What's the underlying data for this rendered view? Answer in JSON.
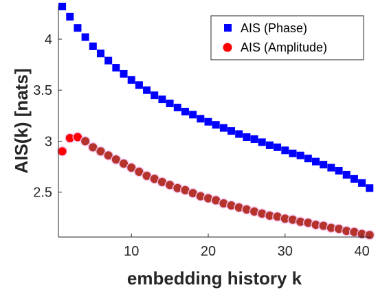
{
  "chart_data": {
    "type": "scatter",
    "title": "",
    "xlabel": "embedding history k",
    "ylabel": "AIS(k) [nats]",
    "xlim": [
      0.5,
      41.2
    ],
    "ylim": [
      2.06,
      4.33
    ],
    "xticks": [
      10,
      20,
      30,
      40
    ],
    "yticks": [
      2.5,
      3,
      3.5,
      4
    ],
    "xtick_labels": [
      "10",
      "20",
      "30",
      "40"
    ],
    "ytick_labels": [
      "2.5",
      "3",
      "3.5",
      "4"
    ],
    "grid": false,
    "legend_position": "top-right",
    "x": [
      1,
      2,
      3,
      4,
      5,
      6,
      7,
      8,
      9,
      10,
      11,
      12,
      13,
      14,
      15,
      16,
      17,
      18,
      19,
      20,
      21,
      22,
      23,
      24,
      25,
      26,
      27,
      28,
      29,
      30,
      31,
      32,
      33,
      34,
      35,
      36,
      37,
      38,
      39,
      40,
      41
    ],
    "series": [
      {
        "name": "AIS (Phase)",
        "marker": "square",
        "color": "#0000ff",
        "values": [
          4.32,
          4.22,
          4.11,
          4.02,
          3.93,
          3.86,
          3.79,
          3.72,
          3.66,
          3.6,
          3.55,
          3.5,
          3.45,
          3.41,
          3.37,
          3.33,
          3.29,
          3.26,
          3.22,
          3.19,
          3.16,
          3.13,
          3.1,
          3.07,
          3.04,
          3.02,
          2.99,
          2.96,
          2.94,
          2.91,
          2.88,
          2.86,
          2.83,
          2.8,
          2.77,
          2.74,
          2.71,
          2.67,
          2.63,
          2.59,
          2.54
        ]
      },
      {
        "name": "AIS (Amplitude)",
        "marker": "circle",
        "color": "#ff0000",
        "values": [
          2.9,
          3.03,
          3.04,
          3.0,
          2.94,
          2.9,
          2.86,
          2.82,
          2.78,
          2.74,
          2.7,
          2.66,
          2.63,
          2.6,
          2.57,
          2.54,
          2.52,
          2.49,
          2.46,
          2.44,
          2.42,
          2.39,
          2.37,
          2.35,
          2.33,
          2.31,
          2.29,
          2.27,
          2.26,
          2.24,
          2.23,
          2.21,
          2.2,
          2.18,
          2.17,
          2.15,
          2.14,
          2.12,
          2.11,
          2.09,
          2.08
        ]
      }
    ]
  }
}
